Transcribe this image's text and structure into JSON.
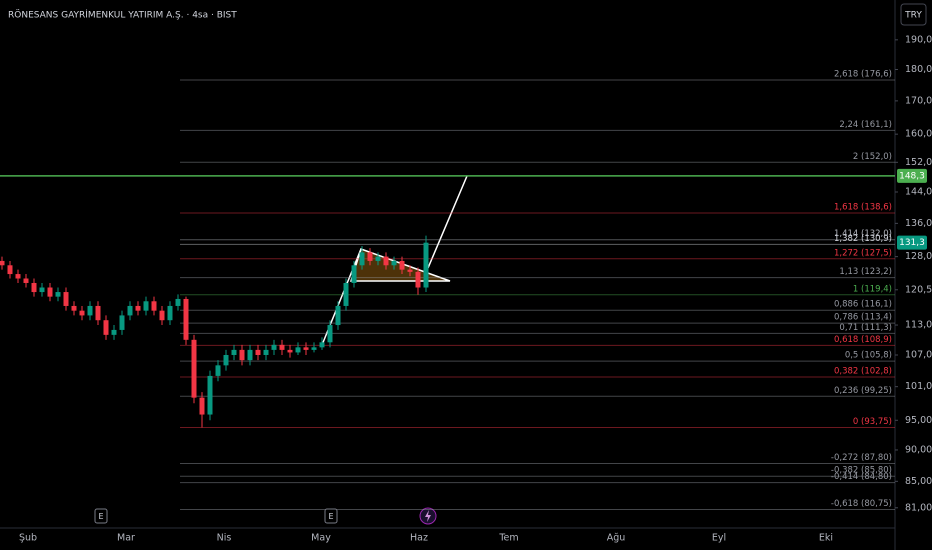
{
  "chart_data": {
    "type": "candlestick",
    "title": "RÖNESANS GAYRİMENKUL YATIRIM A.Ş. · 4sa · BIST",
    "currency": "TRY",
    "yscale": "log",
    "ylim": [
      78.5,
      204.3
    ],
    "yticks": [
      {
        "value": 190,
        "label": "190,0"
      },
      {
        "value": 180,
        "label": "180,0"
      },
      {
        "value": 170,
        "label": "170,0"
      },
      {
        "value": 160,
        "label": "160,0"
      },
      {
        "value": 152,
        "label": "152,0"
      },
      {
        "value": 144,
        "label": "144,0"
      },
      {
        "value": 136,
        "label": "136,0"
      },
      {
        "value": 128,
        "label": "128,0"
      },
      {
        "value": 120.5,
        "label": "120,5"
      },
      {
        "value": 113,
        "label": "113,0"
      },
      {
        "value": 107,
        "label": "107,0"
      },
      {
        "value": 101,
        "label": "101,0"
      },
      {
        "value": 95,
        "label": "95,00"
      },
      {
        "value": 90,
        "label": "90,00"
      },
      {
        "value": 85,
        "label": "85,00"
      },
      {
        "value": 81,
        "label": "81,00"
      }
    ],
    "x_labels": [
      "Şub",
      "Mar",
      "Nis",
      "May",
      "Haz",
      "Tem",
      "Ağu",
      "Eyl",
      "Eki"
    ],
    "events": [
      "E",
      "E"
    ],
    "open": [
      127,
      126,
      124,
      123,
      122,
      120,
      121,
      119,
      120,
      117,
      116,
      115,
      117,
      114,
      111,
      112,
      115,
      117,
      116,
      118,
      116,
      114,
      117,
      118.5,
      110,
      99,
      96,
      103,
      105,
      107,
      108,
      106,
      108,
      107,
      108,
      109,
      108,
      107.5,
      108.5,
      108,
      108.5,
      109.5,
      113,
      117,
      122,
      126,
      129,
      127,
      128,
      126,
      127,
      125,
      124.5,
      121
    ],
    "high": [
      128,
      127,
      125,
      124,
      123,
      122,
      122,
      121,
      121,
      118,
      117,
      118,
      118,
      115,
      113,
      116,
      118,
      118,
      119,
      119,
      117,
      118,
      119.5,
      119,
      111,
      100,
      104,
      106,
      108,
      109,
      109,
      109,
      109,
      109,
      110,
      110,
      109,
      109.5,
      109.5,
      109.5,
      110.5,
      114,
      118,
      123,
      127,
      130.5,
      130,
      129,
      129,
      128,
      128,
      126,
      125.5,
      133
    ],
    "low": [
      125,
      123,
      122,
      121,
      119,
      119,
      118,
      118,
      116,
      115,
      114,
      114,
      113,
      110,
      110,
      111,
      114,
      115,
      115,
      115,
      113,
      113,
      116,
      109,
      98,
      93.75,
      95,
      102,
      104,
      106,
      105,
      105,
      106,
      106,
      107,
      107,
      106.5,
      107,
      107,
      107.5,
      108,
      108.5,
      112,
      116,
      121,
      125,
      126,
      126,
      125,
      125,
      124,
      123.5,
      119.4,
      120
    ],
    "close": [
      126,
      124,
      123,
      122,
      120,
      121,
      119,
      120,
      117,
      116,
      115,
      117,
      114,
      111,
      112,
      115,
      117,
      116,
      118,
      116,
      114,
      117,
      118.5,
      110,
      99,
      96,
      103,
      105,
      107,
      108,
      106,
      108,
      107,
      108,
      109,
      108,
      107.5,
      108.5,
      108,
      108.5,
      109.5,
      113,
      117,
      122,
      126,
      129,
      127,
      128,
      126,
      127,
      125,
      124.5,
      121,
      131.3
    ],
    "up_color": "#089981",
    "down_color": "#f23645",
    "fib_levels": [
      {
        "label": "2,618 (176,6)",
        "price": 176.6,
        "color": "#9598a1"
      },
      {
        "label": "2,24 (161,1)",
        "price": 161.1,
        "color": "#9598a1"
      },
      {
        "label": "2 (152,0)",
        "price": 152.0,
        "color": "#9598a1"
      },
      {
        "label": "1,618 (138,6)",
        "price": 138.6,
        "color": "#f23645"
      },
      {
        "label": "1,414 (132,0)",
        "price": 132.0,
        "color": "#b2b5be"
      },
      {
        "label": "1,382 (130,9)",
        "price": 130.9,
        "color": "#d1d4dc"
      },
      {
        "label": "1,272 (127,5)",
        "price": 127.5,
        "color": "#f23645"
      },
      {
        "label": "1,13 (123,2)",
        "price": 123.2,
        "color": "#9598a1"
      },
      {
        "label": "1 (119,4)",
        "price": 119.4,
        "color": "#4caf50"
      },
      {
        "label": "0,886 (116,1)",
        "price": 116.1,
        "color": "#9598a1"
      },
      {
        "label": "0,786 (113,4)",
        "price": 113.4,
        "color": "#9598a1"
      },
      {
        "label": "0,71 (111,3)",
        "price": 111.3,
        "color": "#9598a1"
      },
      {
        "label": "0,618 (108,9)",
        "price": 108.9,
        "color": "#f23645"
      },
      {
        "label": "0,5 (105,8)",
        "price": 105.8,
        "color": "#9598a1"
      },
      {
        "label": "0,382 (102,8)",
        "price": 102.8,
        "color": "#f23645"
      },
      {
        "label": "0,236 (99,25)",
        "price": 99.25,
        "color": "#9598a1"
      },
      {
        "label": "0 (93,75)",
        "price": 93.75,
        "color": "#f23645"
      },
      {
        "label": "-0,272 (87,80)",
        "price": 87.8,
        "color": "#9598a1"
      },
      {
        "label": "-0,382 (85,80)",
        "price": 85.8,
        "color": "#9598a1"
      },
      {
        "label": "-0,414 (84,80)",
        "price": 84.8,
        "color": "#9598a1"
      },
      {
        "label": "-0,618 (80,75)",
        "price": 80.75,
        "color": "#9598a1"
      }
    ],
    "alert_price": {
      "value": 148.3,
      "label": "148,3",
      "color": "#4caf50"
    },
    "last_price": {
      "value": 131.3,
      "label": "131,3",
      "color": "#089981"
    }
  }
}
